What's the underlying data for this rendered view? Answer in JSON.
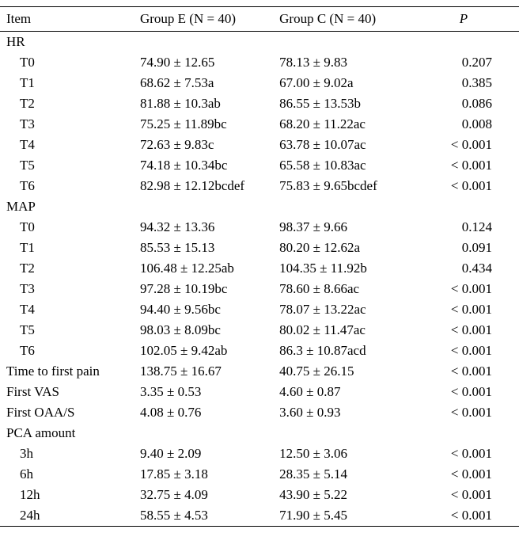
{
  "table": {
    "headers": {
      "item": "Item",
      "group_e": "Group E (N = 40)",
      "group_c": "Group C (N = 40)",
      "p": "P"
    },
    "rows": [
      {
        "item": "HR",
        "group_e": "",
        "group_c": "",
        "p": "",
        "indent": false
      },
      {
        "item": "T0",
        "group_e": "74.90 ± 12.65",
        "group_c": "78.13 ± 9.83",
        "p": "0.207",
        "indent": true
      },
      {
        "item": "T1",
        "group_e": "68.62 ± 7.53a",
        "group_c": "67.00 ± 9.02a",
        "p": "0.385",
        "indent": true
      },
      {
        "item": "T2",
        "group_e": "81.88 ± 10.3ab",
        "group_c": "86.55 ± 13.53b",
        "p": "0.086",
        "indent": true
      },
      {
        "item": "T3",
        "group_e": "75.25 ± 11.89bc",
        "group_c": "68.20 ± 11.22ac",
        "p": "0.008",
        "indent": true
      },
      {
        "item": "T4",
        "group_e": "72.63 ± 9.83c",
        "group_c": "63.78 ± 10.07ac",
        "p": "< 0.001",
        "indent": true
      },
      {
        "item": "T5",
        "group_e": "74.18 ± 10.34bc",
        "group_c": "65.58 ± 10.83ac",
        "p": "< 0.001",
        "indent": true
      },
      {
        "item": "T6",
        "group_e": "82.98 ± 12.12bcdef",
        "group_c": "75.83 ± 9.65bcdef",
        "p": "< 0.001",
        "indent": true
      },
      {
        "item": "MAP",
        "group_e": "",
        "group_c": "",
        "p": "",
        "indent": false
      },
      {
        "item": "T0",
        "group_e": "94.32 ± 13.36",
        "group_c": "98.37 ± 9.66",
        "p": "0.124",
        "indent": true
      },
      {
        "item": "T1",
        "group_e": "85.53 ± 15.13",
        "group_c": "80.20 ± 12.62a",
        "p": "0.091",
        "indent": true
      },
      {
        "item": "T2",
        "group_e": "106.48 ± 12.25ab",
        "group_c": "104.35 ± 11.92b",
        "p": "0.434",
        "indent": true
      },
      {
        "item": "T3",
        "group_e": "97.28 ± 10.19bc",
        "group_c": "78.60 ± 8.66ac",
        "p": "< 0.001",
        "indent": true
      },
      {
        "item": "T4",
        "group_e": "94.40 ± 9.56bc",
        "group_c": "78.07 ± 13.22ac",
        "p": "< 0.001",
        "indent": true
      },
      {
        "item": "T5",
        "group_e": "98.03 ± 8.09bc",
        "group_c": "80.02 ± 11.47ac",
        "p": "< 0.001",
        "indent": true
      },
      {
        "item": "T6",
        "group_e": "102.05 ± 9.42ab",
        "group_c": "86.3 ± 10.87acd",
        "p": "< 0.001",
        "indent": true
      },
      {
        "item": "Time to first pain",
        "group_e": "138.75 ± 16.67",
        "group_c": "40.75 ± 26.15",
        "p": "< 0.001",
        "indent": false
      },
      {
        "item": "First VAS",
        "group_e": "3.35 ± 0.53",
        "group_c": "4.60 ± 0.87",
        "p": "< 0.001",
        "indent": false
      },
      {
        "item": "First OAA/S",
        "group_e": "4.08 ± 0.76",
        "group_c": "3.60 ± 0.93",
        "p": "< 0.001",
        "indent": false
      },
      {
        "item": "PCA amount",
        "group_e": "",
        "group_c": "",
        "p": "",
        "indent": false
      },
      {
        "item": "3h",
        "group_e": "9.40 ± 2.09",
        "group_c": "12.50 ± 3.06",
        "p": "< 0.001",
        "indent": true
      },
      {
        "item": "6h",
        "group_e": "17.85 ± 3.18",
        "group_c": "28.35 ± 5.14",
        "p": "< 0.001",
        "indent": true
      },
      {
        "item": "12h",
        "group_e": "32.75 ± 4.09",
        "group_c": "43.90 ± 5.22",
        "p": "< 0.001",
        "indent": true
      },
      {
        "item": "24h",
        "group_e": "58.55 ± 4.53",
        "group_c": "71.90 ± 5.45",
        "p": "< 0.001",
        "indent": true
      }
    ]
  }
}
